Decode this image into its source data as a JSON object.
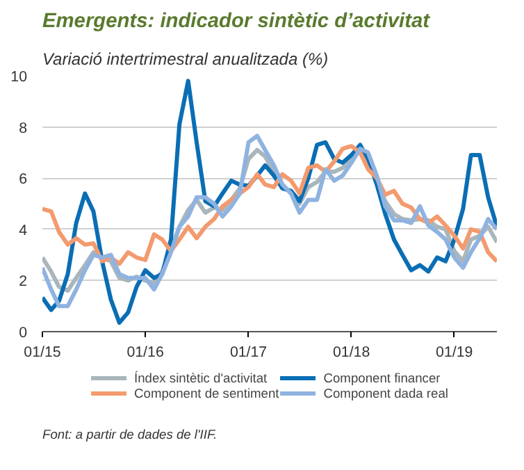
{
  "chart_data": {
    "type": "line",
    "title": "Emergents: indicador sintètic d’activitat",
    "subtitle": "Variació intertrimestral anualitzada (%)",
    "x": [
      "2015-01",
      "2015-02",
      "2015-03",
      "2015-04",
      "2015-05",
      "2015-06",
      "2015-07",
      "2015-08",
      "2015-09",
      "2015-10",
      "2015-11",
      "2015-12",
      "2016-01",
      "2016-02",
      "2016-03",
      "2016-04",
      "2016-05",
      "2016-06",
      "2016-07",
      "2016-08",
      "2016-09",
      "2016-10",
      "2016-11",
      "2016-12",
      "2017-01",
      "2017-02",
      "2017-03",
      "2017-04",
      "2017-05",
      "2017-06",
      "2017-07",
      "2017-08",
      "2017-09",
      "2017-10",
      "2017-11",
      "2017-12",
      "2018-01",
      "2018-02",
      "2018-03",
      "2018-04",
      "2018-05",
      "2018-06",
      "2018-07",
      "2018-08",
      "2018-09",
      "2018-10",
      "2018-11",
      "2018-12",
      "2019-01",
      "2019-02",
      "2019-03",
      "2019-04",
      "2019-05",
      "2019-06"
    ],
    "series": [
      {
        "name": "Índex sintètic d'activitat",
        "color": "#a9b6bb",
        "values": [
          2.9,
          2.35,
          1.75,
          1.6,
          2.1,
          2.6,
          3.1,
          2.9,
          2.75,
          2.1,
          2.0,
          2.15,
          2.0,
          1.9,
          2.35,
          3.25,
          4.1,
          4.75,
          5.15,
          4.65,
          4.85,
          4.75,
          5.15,
          5.6,
          6.75,
          7.1,
          6.85,
          6.25,
          5.75,
          5.4,
          5.0,
          5.65,
          5.85,
          6.25,
          6.25,
          6.4,
          6.75,
          7.15,
          6.75,
          5.9,
          5.1,
          4.6,
          4.4,
          4.35,
          4.4,
          4.35,
          4.1,
          4.0,
          3.15,
          2.75,
          3.6,
          3.75,
          4.1,
          3.5
        ]
      },
      {
        "name": "Component financer",
        "color": "#0a6eb4",
        "values": [
          1.33,
          0.85,
          1.2,
          2.25,
          4.25,
          5.4,
          4.7,
          2.75,
          1.25,
          0.35,
          0.75,
          1.75,
          2.4,
          2.1,
          2.25,
          3.6,
          8.1,
          9.8,
          7.4,
          5.1,
          4.9,
          5.4,
          5.9,
          5.75,
          5.7,
          6.1,
          6.5,
          6.1,
          5.6,
          5.5,
          5.1,
          6.0,
          7.3,
          7.4,
          6.75,
          6.6,
          6.9,
          7.3,
          6.75,
          5.75,
          4.6,
          3.6,
          3.0,
          2.4,
          2.6,
          2.35,
          2.9,
          2.75,
          3.6,
          4.8,
          6.9,
          6.9,
          5.25,
          4.1
        ]
      },
      {
        "name": "Component de sentiment",
        "color": "#f39a6e",
        "values": [
          4.8,
          4.7,
          3.9,
          3.4,
          3.65,
          3.4,
          3.45,
          2.75,
          2.9,
          2.65,
          3.1,
          2.9,
          2.8,
          3.8,
          3.6,
          3.15,
          3.6,
          4.1,
          3.65,
          4.1,
          4.4,
          4.9,
          5.15,
          5.4,
          5.65,
          6.15,
          5.75,
          5.65,
          6.15,
          5.9,
          5.4,
          6.4,
          6.5,
          6.25,
          6.65,
          7.15,
          7.25,
          7.0,
          6.35,
          6.0,
          5.35,
          5.5,
          5.0,
          4.85,
          4.4,
          4.25,
          4.5,
          4.15,
          3.75,
          3.25,
          4.0,
          3.9,
          3.1,
          2.75
        ]
      },
      {
        "name": "Component dada real",
        "color": "#8fb3e0",
        "values": [
          2.5,
          1.65,
          1.0,
          1.0,
          1.65,
          2.4,
          3.0,
          2.9,
          3.0,
          2.25,
          2.1,
          2.1,
          2.1,
          1.65,
          2.25,
          3.1,
          4.1,
          4.5,
          5.25,
          5.25,
          5.0,
          4.5,
          4.9,
          5.4,
          7.4,
          7.65,
          7.1,
          6.5,
          5.75,
          5.4,
          4.65,
          5.15,
          5.15,
          6.35,
          5.9,
          6.1,
          6.6,
          7.15,
          7.0,
          6.1,
          4.9,
          4.35,
          4.35,
          4.25,
          4.9,
          4.15,
          3.9,
          3.6,
          2.9,
          2.5,
          3.1,
          3.65,
          4.4,
          4.0
        ]
      }
    ],
    "xlim": [
      "2015-01",
      "2019-06"
    ],
    "xticks": [
      {
        "value": "2015-01",
        "label": "01/15"
      },
      {
        "value": "2016-01",
        "label": "01/16"
      },
      {
        "value": "2017-01",
        "label": "01/17"
      },
      {
        "value": "2018-01",
        "label": "01/18"
      },
      {
        "value": "2019-01",
        "label": "01/19"
      }
    ],
    "ylim": [
      0,
      10
    ],
    "yticks": [
      0,
      2,
      4,
      6,
      8,
      10
    ],
    "grid": "y",
    "legend": "bottom",
    "line_style": "solid",
    "annotations": [
      "Font: a partir de dades de l'IIF."
    ]
  }
}
